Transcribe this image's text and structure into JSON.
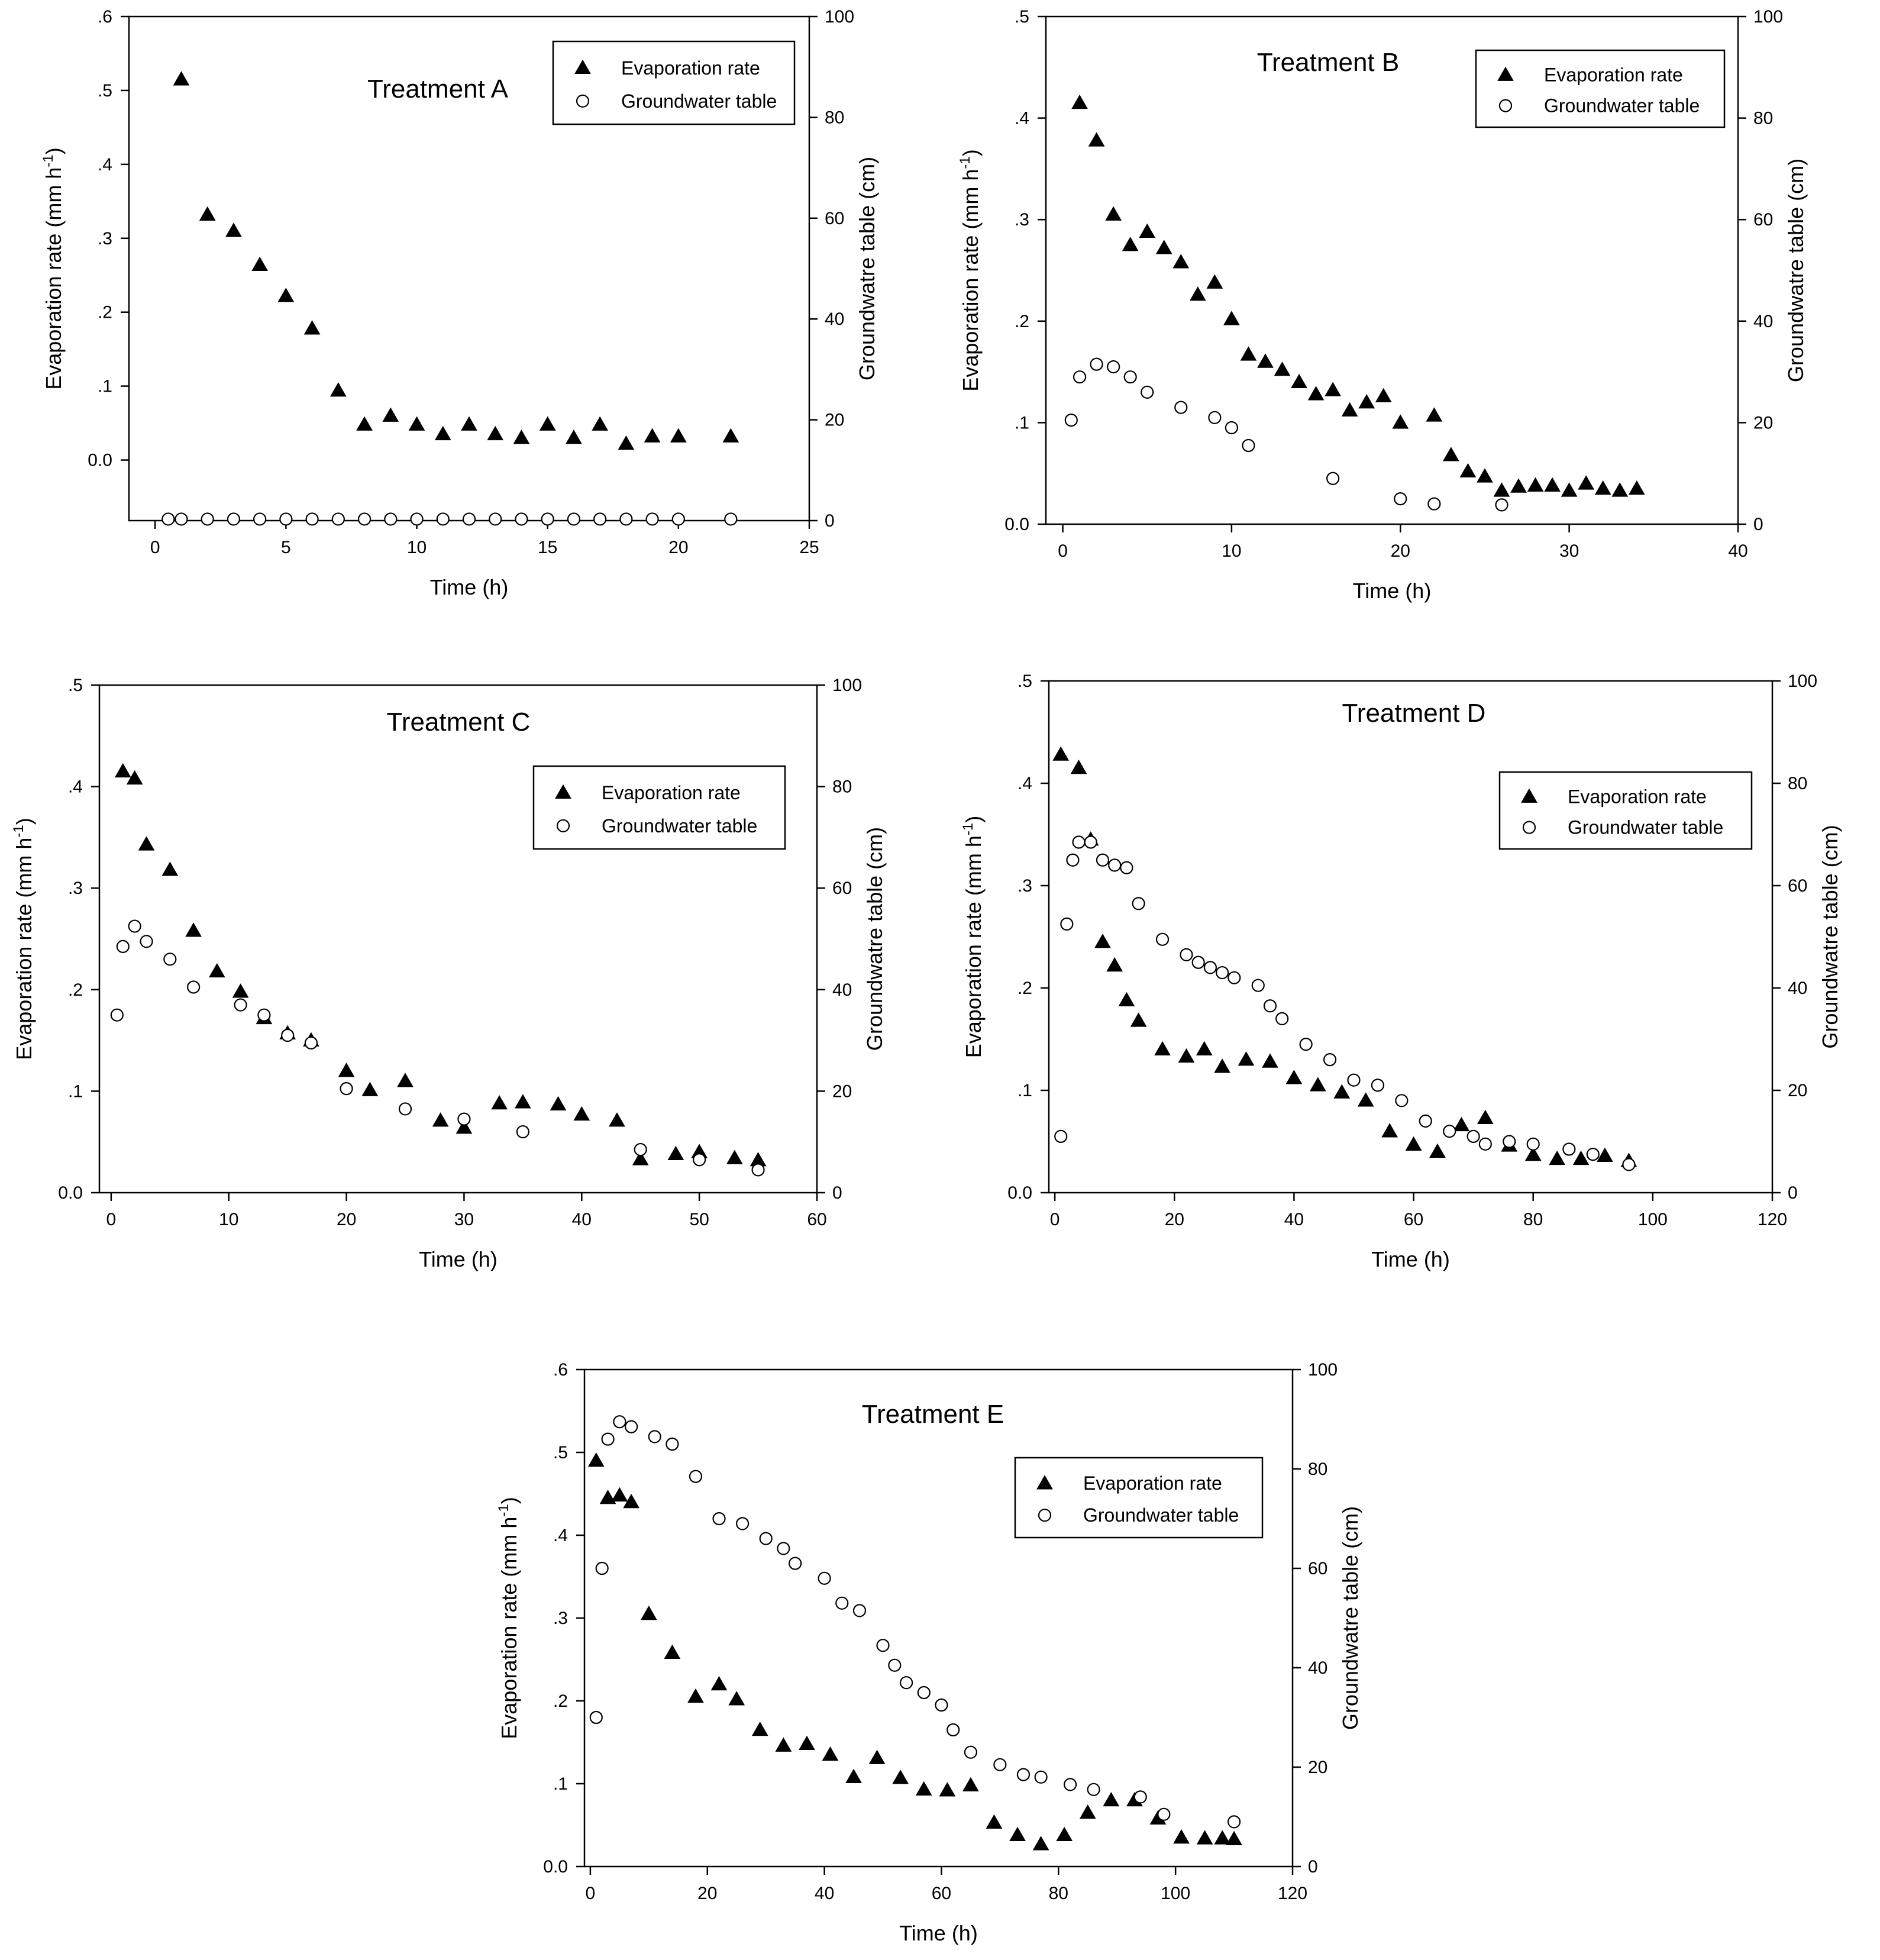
{
  "colors": {
    "marker": "#000000",
    "axis": "#000000",
    "background": "#ffffff"
  },
  "chart_data": [
    {
      "id": "A",
      "type": "scatter",
      "title": "Treatment A",
      "xlabel": "Time (h)",
      "ylabel": "Evaporation rate (mm h",
      "ylabel_sup": "-1",
      "ylabel_close": ")",
      "y2label": "Groundwatre table (cm)",
      "xlim": [
        -1,
        25
      ],
      "ylim": [
        -0.082,
        0.6
      ],
      "y2lim": [
        0,
        100
      ],
      "xticks": [
        0,
        5,
        10,
        15,
        20,
        25
      ],
      "xtick_labels": [
        "0",
        "5",
        "10",
        "15",
        "20",
        "25"
      ],
      "yticks": [
        0.0,
        0.1,
        0.2,
        0.3,
        0.4,
        0.5,
        0.6
      ],
      "ytick_labels": [
        "0.0",
        ".1",
        ".2",
        ".3",
        ".4",
        ".5",
        ".6"
      ],
      "y2ticks": [
        0,
        20,
        40,
        60,
        80,
        100
      ],
      "y2tick_labels": [
        "0",
        "20",
        "40",
        "60",
        "80",
        "100"
      ],
      "legend": [
        "Evaporation rate",
        "Groundwater table"
      ],
      "legend_position": "top-right",
      "series": [
        {
          "name": "Evaporation rate",
          "axis": "left",
          "marker": "filled-triangle",
          "x": [
            1,
            2,
            3,
            4,
            5,
            6,
            7,
            8,
            9,
            10,
            11,
            12,
            13,
            14,
            15,
            16,
            17,
            18,
            19,
            20,
            22
          ],
          "y": [
            0.515,
            0.332,
            0.31,
            0.264,
            0.222,
            0.178,
            0.094,
            0.048,
            0.06,
            0.048,
            0.035,
            0.048,
            0.035,
            0.03,
            0.048,
            0.03,
            0.048,
            0.022,
            0.032,
            0.032,
            0.032
          ]
        },
        {
          "name": "Groundwater table",
          "axis": "right",
          "marker": "open-circle",
          "x": [
            0.5,
            1,
            2,
            3,
            4,
            5,
            6,
            7,
            8,
            9,
            10,
            11,
            12,
            13,
            14,
            15,
            16,
            17,
            18,
            19,
            20,
            22
          ],
          "y": [
            0.3,
            0.3,
            0.3,
            0.3,
            0.3,
            0.3,
            0.3,
            0.3,
            0.3,
            0.3,
            0.3,
            0.3,
            0.3,
            0.3,
            0.3,
            0.3,
            0.3,
            0.3,
            0.3,
            0.3,
            0.3,
            0.3
          ]
        }
      ]
    },
    {
      "id": "B",
      "type": "scatter",
      "title": "Treatment B",
      "xlabel": "Time (h)",
      "ylabel": "Evaporation rate (mm h",
      "ylabel_sup": "-1",
      "ylabel_close": ")",
      "y2label": "Groundwatre table (cm)",
      "xlim": [
        -1,
        40
      ],
      "ylim": [
        0,
        0.5
      ],
      "y2lim": [
        0,
        100
      ],
      "xticks": [
        0,
        10,
        20,
        30,
        40
      ],
      "xtick_labels": [
        "0",
        "10",
        "20",
        "30",
        "40"
      ],
      "yticks": [
        0.0,
        0.1,
        0.2,
        0.3,
        0.4,
        0.5
      ],
      "ytick_labels": [
        "0.0",
        ".1",
        ".2",
        ".3",
        ".4",
        ".5"
      ],
      "y2ticks": [
        0,
        20,
        40,
        60,
        80,
        100
      ],
      "y2tick_labels": [
        "0",
        "20",
        "40",
        "60",
        "80",
        "100"
      ],
      "legend": [
        "Evaporation rate",
        "Groundwater table"
      ],
      "legend_position": "top-right",
      "series": [
        {
          "name": "Evaporation rate",
          "axis": "left",
          "marker": "filled-triangle",
          "x": [
            1,
            2,
            3,
            4,
            5,
            6,
            7,
            8,
            9,
            10,
            11,
            12,
            13,
            14,
            15,
            16,
            17,
            18,
            19,
            20,
            22,
            23,
            24,
            25,
            26,
            27,
            28,
            29,
            30,
            31,
            32,
            33,
            34
          ],
          "y": [
            0.415,
            0.378,
            0.305,
            0.275,
            0.288,
            0.272,
            0.258,
            0.226,
            0.238,
            0.202,
            0.167,
            0.16,
            0.152,
            0.14,
            0.128,
            0.132,
            0.112,
            0.12,
            0.126,
            0.1,
            0.107,
            0.068,
            0.052,
            0.047,
            0.033,
            0.037,
            0.038,
            0.038,
            0.033,
            0.04,
            0.035,
            0.033,
            0.035
          ]
        },
        {
          "name": "Groundwater table",
          "axis": "right",
          "marker": "open-circle",
          "x": [
            0.5,
            1,
            2,
            3,
            4,
            5,
            7,
            9,
            10,
            11,
            16,
            20,
            22,
            26
          ],
          "y": [
            20.5,
            29,
            31.5,
            31,
            29,
            26,
            23,
            21,
            19,
            15.5,
            9,
            5,
            4,
            3.8
          ]
        }
      ]
    },
    {
      "id": "C",
      "type": "scatter",
      "title": "Treatment C",
      "xlabel": "Time (h)",
      "ylabel": "Evaporation rate (mm h",
      "ylabel_sup": "-1",
      "ylabel_close": ")",
      "y2label": "Groundwatre table (cm)",
      "xlim": [
        -1,
        60
      ],
      "ylim": [
        0,
        0.5
      ],
      "y2lim": [
        0,
        100
      ],
      "xticks": [
        0,
        10,
        20,
        30,
        40,
        50,
        60
      ],
      "xtick_labels": [
        "0",
        "10",
        "20",
        "30",
        "40",
        "50",
        "60"
      ],
      "yticks": [
        0.0,
        0.1,
        0.2,
        0.3,
        0.4,
        0.5
      ],
      "ytick_labels": [
        "0.0",
        ".1",
        ".2",
        ".3",
        ".4",
        ".5"
      ],
      "y2ticks": [
        0,
        20,
        40,
        60,
        80,
        100
      ],
      "y2tick_labels": [
        "0",
        "20",
        "40",
        "60",
        "80",
        "100"
      ],
      "legend": [
        "Evaporation rate",
        "Groundwater table"
      ],
      "legend_position": "top-right",
      "series": [
        {
          "name": "Evaporation rate",
          "axis": "left",
          "marker": "filled-triangle",
          "x": [
            1,
            2,
            3,
            5,
            7,
            9,
            11,
            13,
            15,
            17,
            20,
            22,
            25,
            28,
            30,
            33,
            35,
            38,
            40,
            43,
            45,
            48,
            50,
            53,
            55
          ],
          "y": [
            0.415,
            0.408,
            0.343,
            0.318,
            0.258,
            0.218,
            0.198,
            0.172,
            0.157,
            0.15,
            0.12,
            0.101,
            0.11,
            0.071,
            0.064,
            0.088,
            0.089,
            0.087,
            0.077,
            0.071,
            0.033,
            0.038,
            0.04,
            0.034,
            0.032
          ]
        },
        {
          "name": "Groundwater table",
          "axis": "right",
          "marker": "open-circle",
          "x": [
            0.5,
            1,
            2,
            3,
            5,
            7,
            11,
            13,
            15,
            17,
            20,
            25,
            30,
            35,
            45,
            50,
            55
          ],
          "y": [
            35,
            48.5,
            52.5,
            49.5,
            46,
            40.5,
            37,
            35,
            31,
            29.5,
            20.5,
            16.5,
            14.5,
            12,
            8.5,
            6.5,
            4.5
          ]
        }
      ]
    },
    {
      "id": "D",
      "type": "scatter",
      "title": "Treatment D",
      "xlabel": "Time (h)",
      "ylabel": "Evaporation rate (mm h",
      "ylabel_sup": "-1",
      "ylabel_close": ")",
      "y2label": "Groundwatre table (cm)",
      "xlim": [
        -1,
        120
      ],
      "ylim": [
        0,
        0.5
      ],
      "y2lim": [
        0,
        100
      ],
      "xticks": [
        0,
        20,
        40,
        60,
        80,
        100,
        120
      ],
      "xtick_labels": [
        "0",
        "20",
        "40",
        "60",
        "80",
        "100",
        "120"
      ],
      "yticks": [
        0.0,
        0.1,
        0.2,
        0.3,
        0.4,
        0.5
      ],
      "ytick_labels": [
        "0.0",
        ".1",
        ".2",
        ".3",
        ".4",
        ".5"
      ],
      "y2ticks": [
        0,
        20,
        40,
        60,
        80,
        100
      ],
      "y2tick_labels": [
        "0",
        "20",
        "40",
        "60",
        "80",
        "100"
      ],
      "legend": [
        "Evaporation rate",
        "Groundwater table"
      ],
      "legend_position": "top-right",
      "series": [
        {
          "name": "Evaporation rate",
          "axis": "left",
          "marker": "filled-triangle",
          "x": [
            1,
            4,
            6,
            8,
            10,
            12,
            14,
            18,
            22,
            25,
            28,
            32,
            36,
            40,
            44,
            48,
            52,
            56,
            60,
            64,
            68,
            72,
            76,
            80,
            84,
            88,
            92,
            96
          ],
          "y": [
            0.428,
            0.415,
            0.345,
            0.245,
            0.222,
            0.188,
            0.168,
            0.14,
            0.133,
            0.14,
            0.123,
            0.13,
            0.128,
            0.112,
            0.105,
            0.098,
            0.09,
            0.06,
            0.047,
            0.04,
            0.066,
            0.073,
            0.046,
            0.037,
            0.033,
            0.033,
            0.036,
            0.031
          ]
        },
        {
          "name": "Groundwater table",
          "axis": "right",
          "marker": "open-circle",
          "x": [
            1,
            2,
            3,
            4,
            6,
            8,
            10,
            12,
            14,
            18,
            22,
            24,
            26,
            28,
            30,
            34,
            36,
            38,
            42,
            46,
            50,
            54,
            58,
            62,
            66,
            70,
            72,
            76,
            80,
            86,
            90,
            96
          ],
          "y": [
            11,
            52.5,
            65,
            68.5,
            68.5,
            65,
            64,
            63.5,
            56.5,
            49.5,
            46.5,
            45,
            44,
            43,
            42,
            40.5,
            36.5,
            34,
            29,
            26,
            22,
            21,
            18,
            14,
            12,
            11,
            9.5,
            10,
            9.5,
            8.5,
            7.5,
            5.5
          ]
        }
      ]
    },
    {
      "id": "E",
      "type": "scatter",
      "title": "Treatment E",
      "xlabel": "Time (h)",
      "ylabel": "Evaporation rate (mm h",
      "ylabel_sup": "-1",
      "ylabel_close": ")",
      "y2label": "Groundwatre table (cm)",
      "xlim": [
        -1,
        120
      ],
      "ylim": [
        0,
        0.6
      ],
      "y2lim": [
        0,
        100
      ],
      "xticks": [
        0,
        20,
        40,
        60,
        80,
        100,
        120
      ],
      "xtick_labels": [
        "0",
        "20",
        "40",
        "60",
        "80",
        "100",
        "120"
      ],
      "yticks": [
        0.0,
        0.1,
        0.2,
        0.3,
        0.4,
        0.5,
        0.6
      ],
      "ytick_labels": [
        "0.0",
        ".1",
        ".2",
        ".3",
        ".4",
        ".5",
        ".6"
      ],
      "y2ticks": [
        0,
        20,
        40,
        60,
        80,
        100
      ],
      "y2tick_labels": [
        "0",
        "20",
        "40",
        "60",
        "80",
        "100"
      ],
      "legend": [
        "Evaporation rate",
        "Groundwater table"
      ],
      "legend_position": "top-right",
      "series": [
        {
          "name": "Evaporation rate",
          "axis": "left",
          "marker": "filled-triangle",
          "x": [
            1,
            3,
            5,
            7,
            10,
            14,
            18,
            22,
            25,
            29,
            33,
            37,
            41,
            45,
            49,
            53,
            57,
            61,
            65,
            69,
            73,
            77,
            81,
            85,
            89,
            93,
            97,
            101,
            105,
            108,
            110
          ],
          "y": [
            0.49,
            0.445,
            0.448,
            0.44,
            0.305,
            0.258,
            0.205,
            0.22,
            0.202,
            0.165,
            0.146,
            0.148,
            0.135,
            0.108,
            0.131,
            0.107,
            0.093,
            0.092,
            0.098,
            0.053,
            0.038,
            0.027,
            0.038,
            0.065,
            0.08,
            0.08,
            0.058,
            0.035,
            0.034,
            0.034,
            0.033
          ]
        },
        {
          "name": "Groundwater table",
          "axis": "right",
          "marker": "open-circle",
          "x": [
            1,
            2,
            3,
            5,
            7,
            11,
            14,
            18,
            22,
            26,
            30,
            33,
            35,
            40,
            43,
            46,
            50,
            52,
            54,
            57,
            60,
            62,
            65,
            70,
            74,
            77,
            82,
            86,
            94,
            98,
            110
          ],
          "y": [
            30,
            60,
            86,
            89.5,
            88.5,
            86.5,
            85,
            78.5,
            70,
            69,
            66,
            64,
            61,
            58,
            53,
            51.5,
            44.5,
            40.5,
            37,
            35,
            32.5,
            27.5,
            23,
            20.5,
            18.5,
            18,
            16.5,
            15.5,
            14,
            10.5,
            9
          ]
        }
      ]
    }
  ]
}
